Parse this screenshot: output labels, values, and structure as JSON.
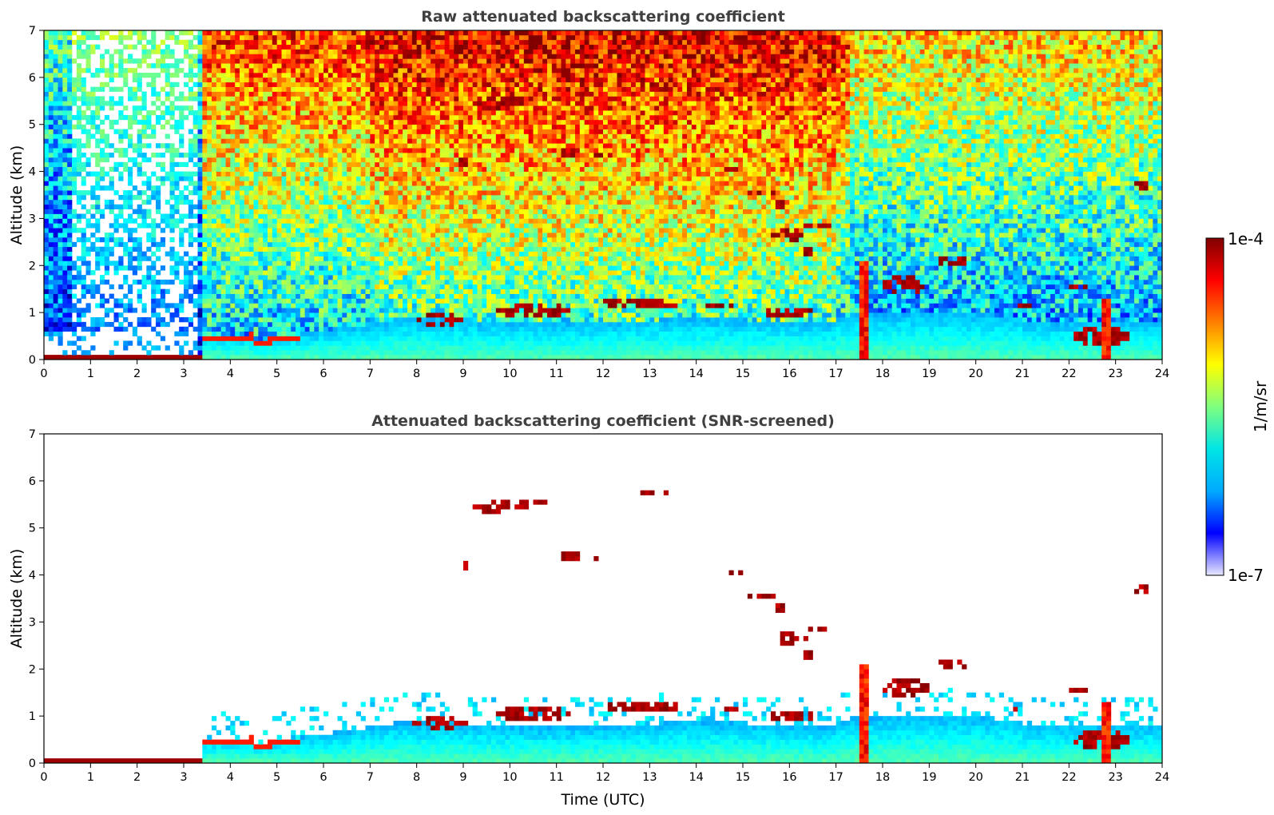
{
  "chart_data": [
    {
      "type": "heatmap",
      "title": "Raw attenuated backscattering coefficient",
      "xlabel": "",
      "ylabel": "Altitude (km)",
      "xlim": [
        0,
        24
      ],
      "ylim": [
        0,
        7
      ],
      "xticks": [
        "0",
        "1",
        "2",
        "3",
        "4",
        "5",
        "6",
        "7",
        "8",
        "9",
        "10",
        "11",
        "12",
        "13",
        "14",
        "15",
        "16",
        "17",
        "18",
        "19",
        "20",
        "21",
        "22",
        "23",
        "24"
      ],
      "yticks": [
        "0",
        "1",
        "2",
        "3",
        "4",
        "5",
        "6",
        "7"
      ],
      "variable": "attenuated backscatter (1/m/sr)",
      "grid": false,
      "features": [
        {
          "name": "near-surface layer",
          "t_start": 0.0,
          "t_end": 3.4,
          "z_bottom": 0.0,
          "z_top": 0.15,
          "level": "high"
        },
        {
          "name": "boundary layer",
          "t_start": 3.4,
          "t_end": 23.8,
          "z_bottom": 0.0,
          "z_top": 0.8,
          "level": "moderate"
        },
        {
          "name": "precipitation shaft",
          "t_start": 17.45,
          "t_end": 17.75,
          "z_bottom": 0.0,
          "z_top": 2.2,
          "level": "high"
        },
        {
          "name": "precipitation shaft",
          "t_start": 22.7,
          "t_end": 22.9,
          "z_bottom": 0.0,
          "z_top": 1.4,
          "level": "high"
        },
        {
          "name": "mid-level cloud",
          "t_start": 9.5,
          "t_end": 10.7,
          "z_bottom": 5.3,
          "z_top": 5.6,
          "level": "high"
        },
        {
          "name": "sloping cloud layer",
          "t_start": 14.5,
          "t_end": 16.9,
          "z_bottom": 1.9,
          "z_top": 4.1,
          "level": "high"
        },
        {
          "name": "cloud",
          "t_start": 23.3,
          "t_end": 23.8,
          "z_bottom": 3.6,
          "z_top": 3.8,
          "level": "high"
        }
      ]
    },
    {
      "type": "heatmap",
      "title": "Attenuated backscattering coefficient (SNR-screened)",
      "xlabel": "Time (UTC)",
      "ylabel": "Altitude (km)",
      "xlim": [
        0,
        24
      ],
      "ylim": [
        0,
        7
      ],
      "xticks": [
        "0",
        "1",
        "2",
        "3",
        "4",
        "5",
        "6",
        "7",
        "8",
        "9",
        "10",
        "11",
        "12",
        "13",
        "14",
        "15",
        "16",
        "17",
        "18",
        "19",
        "20",
        "21",
        "22",
        "23",
        "24"
      ],
      "yticks": [
        "0",
        "1",
        "2",
        "3",
        "4",
        "5",
        "6",
        "7"
      ],
      "variable": "attenuated backscatter (1/m/sr), low-SNR pixels removed",
      "grid": false
    }
  ],
  "colorbar": {
    "label": "1/m/sr",
    "max_label": "1e-4",
    "min_label": "1e-7",
    "colormap": "jet",
    "stops": [
      "#e8e8ff",
      "#0000ff",
      "#00aaff",
      "#00e5e5",
      "#7fff7f",
      "#ffff00",
      "#ff8000",
      "#ff0000",
      "#800000"
    ]
  }
}
